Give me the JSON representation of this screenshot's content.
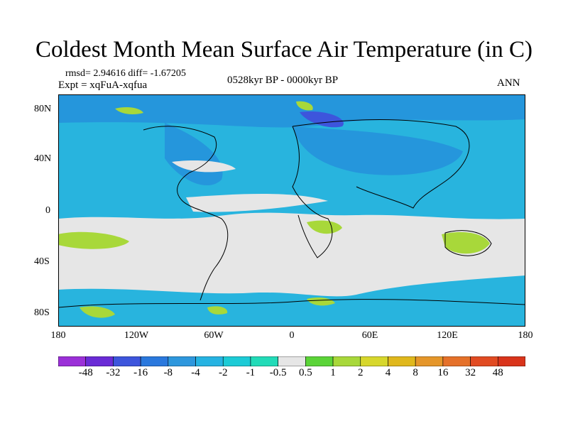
{
  "title": "Coldest Month Mean Surface Air Temperature (in C)",
  "stats": "rmsd= 2.94616 diff= -1.67205",
  "experiment": "Expt = xqFuA-xqfua",
  "period": "0528kyr BP - 0000kyr BP",
  "season": "ANN",
  "lat_labels": [
    "80N",
    "40N",
    "0",
    "40S",
    "80S"
  ],
  "lon_labels": [
    "180",
    "120W",
    "60W",
    "0",
    "60E",
    "120E",
    "180"
  ],
  "colorbar": {
    "labels": [
      "-48",
      "-32",
      "-16",
      "-8",
      "-4",
      "-2",
      "-1",
      "-0.5",
      "0.5",
      "1",
      "2",
      "4",
      "8",
      "16",
      "32",
      "48"
    ],
    "colors": [
      "#9b30d8",
      "#6a2bd6",
      "#3d55dc",
      "#2a78dd",
      "#2e97dd",
      "#26b3e2",
      "#1ccbd6",
      "#22dbb8",
      "#e6e6e6",
      "#5bd438",
      "#a8d83a",
      "#d7d72c",
      "#e0b81c",
      "#e5962a",
      "#e5712a",
      "#e14b22",
      "#d9341b"
    ]
  },
  "colors": {
    "ocean_base": "#28b4de",
    "land_base": "#2596dc",
    "neutral": "#e6e6e6",
    "warm_patch": "#a8d83a",
    "cold_patch": "#3d55dc",
    "coastline": "#000000"
  }
}
